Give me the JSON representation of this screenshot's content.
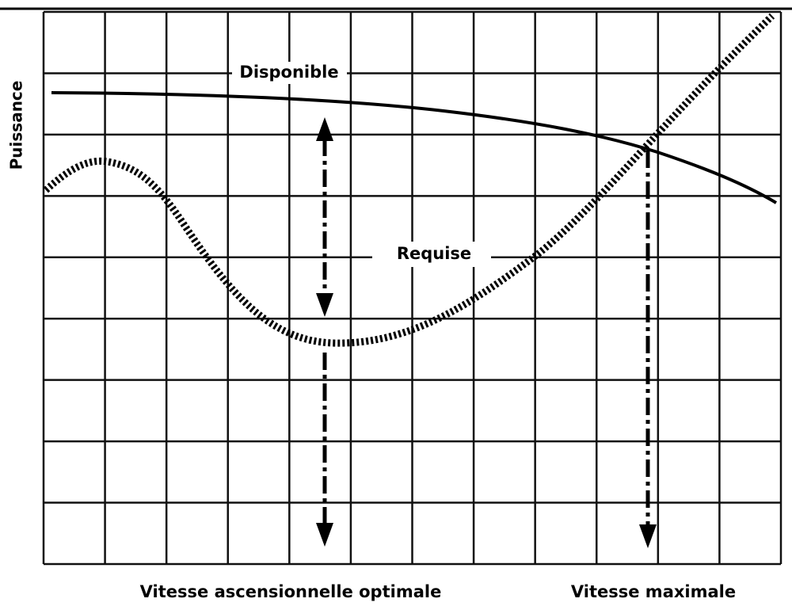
{
  "axis_label": "Puissance",
  "curves": [
    {
      "label": "Disponible"
    },
    {
      "label": "Requise"
    }
  ],
  "markers": [
    {
      "label": "Vitesse ascensionnelle optimale"
    },
    {
      "label": "Vitesse maximale"
    }
  ]
}
